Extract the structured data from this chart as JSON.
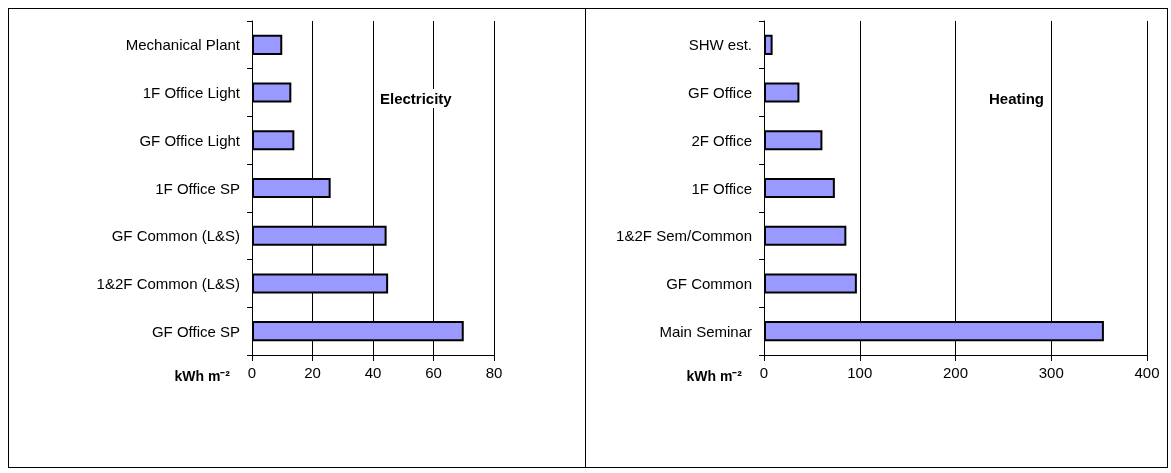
{
  "chart_data": [
    {
      "type": "bar",
      "orientation": "horizontal",
      "title": "Electricity",
      "xlabel": "kWh m⁻²",
      "categories": [
        "Mechanical Plant",
        "1F Office Light",
        "GF Office Light",
        "1F Office SP",
        "GF Common (L&S)",
        "1&2F Common (L&S)",
        "GF Office SP"
      ],
      "values": [
        10,
        13,
        14,
        26,
        44.5,
        45,
        70
      ],
      "color": "#9999ff",
      "xlim": [
        0,
        80
      ],
      "xticks": [
        0,
        20,
        40,
        60,
        80
      ],
      "grid": "x"
    },
    {
      "type": "bar",
      "orientation": "horizontal",
      "title": "Heating",
      "xlabel": "kWh m⁻²",
      "categories": [
        "SHW est.",
        "GF Office",
        "2F Office",
        "1F Office",
        "1&2F Sem/Common",
        "GF Common",
        "Main Seminar"
      ],
      "values": [
        9,
        37,
        61,
        74,
        86,
        97,
        355
      ],
      "color": "#9999ff",
      "xlim": [
        0,
        400
      ],
      "xticks": [
        0,
        100,
        200,
        300,
        400
      ],
      "grid": "x"
    }
  ]
}
